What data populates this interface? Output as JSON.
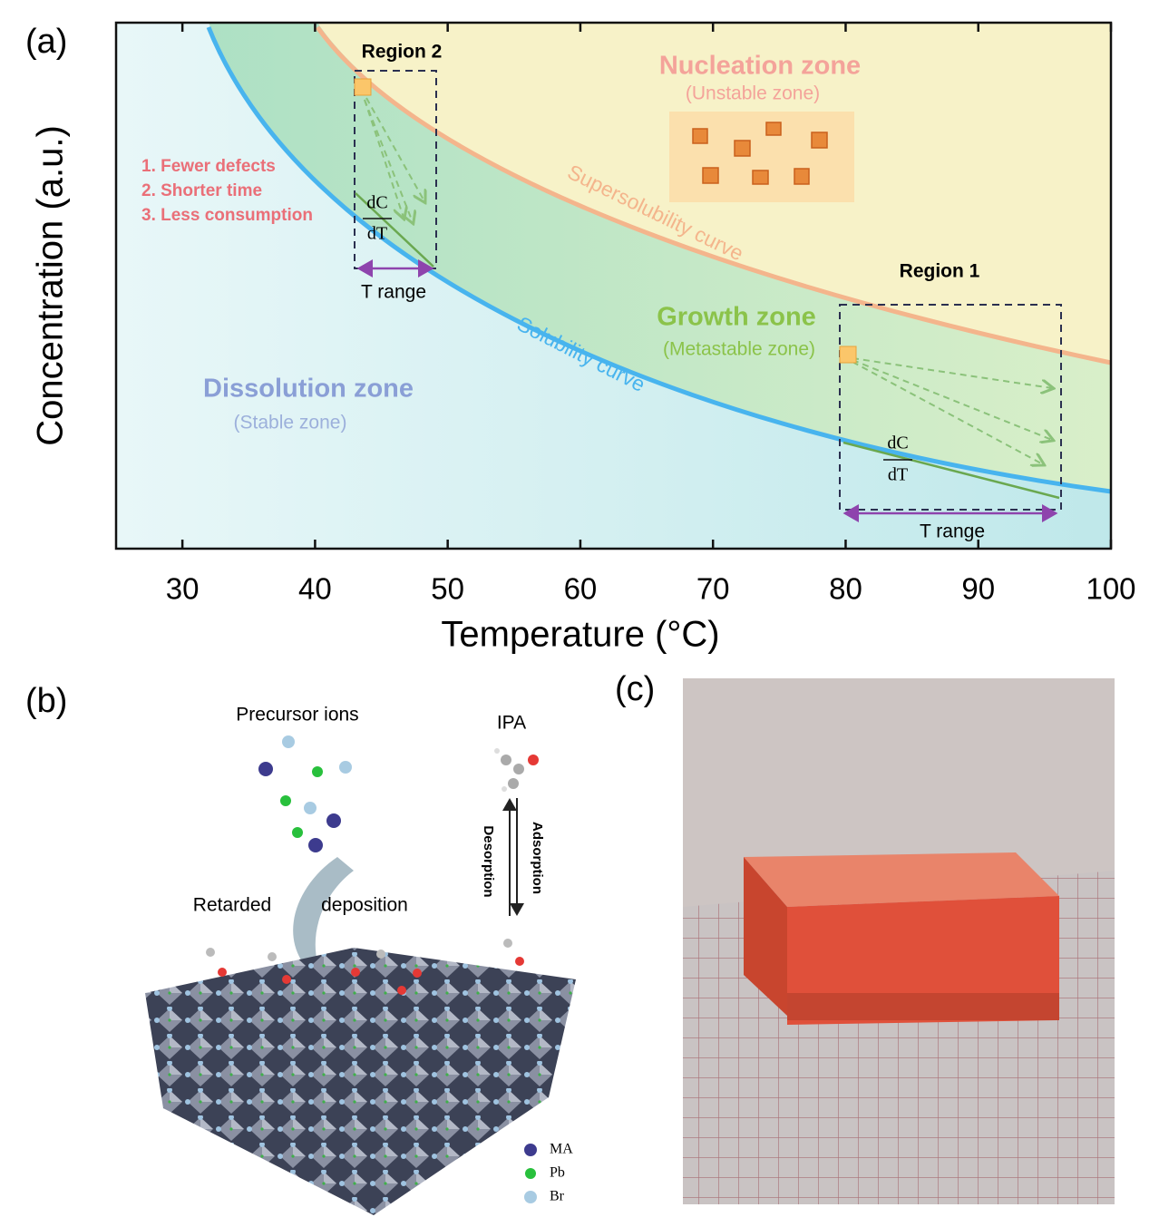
{
  "chart_data": {
    "type": "line",
    "panel_label": "(a)",
    "x_label": "Temperature (°C)",
    "y_label": "Concentration (a.u.)",
    "xlim": [
      25,
      100
    ],
    "xticks": [
      30,
      40,
      50,
      60,
      70,
      80,
      90,
      100
    ],
    "annotations": {
      "region2": "Region 2",
      "region1": "Region 1",
      "nucleation": "Nucleation zone",
      "unstable": "(Unstable zone)",
      "growth": "Growth zone",
      "metastable": "(Metastable zone)",
      "dissolution": "Dissolution zone",
      "stable": "(Stable zone)",
      "supersolubility_curve": "Supersolubility curve",
      "solubility_curve": "Solubility curve",
      "benefit1": "1. Fewer defects",
      "benefit2": "2. Shorter time",
      "benefit3": "3. Less consumption",
      "dc": "dC",
      "dt": "dT",
      "t_range": "T range"
    }
  },
  "panel_b": {
    "label": "(b)",
    "precursor": "Precursor ions",
    "ipa": "IPA",
    "desorption": "Desorption",
    "adsorption": "Adsorption",
    "retarded": "Retarded",
    "deposition": "deposition",
    "legend": [
      "MA",
      "Pb",
      "Br"
    ]
  },
  "panel_c": {
    "label": "(c)"
  }
}
